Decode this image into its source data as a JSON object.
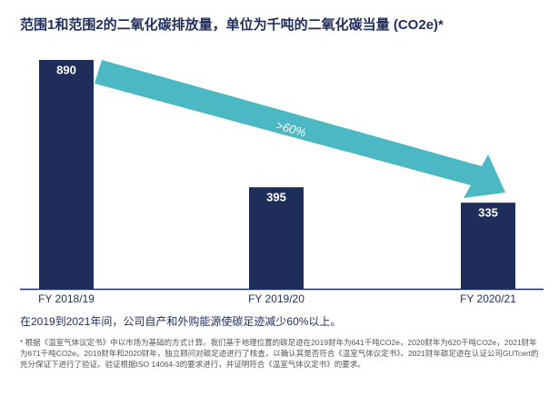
{
  "chart_data": {
    "type": "bar",
    "title": "范围1和范围2的二氧化碳排放量，单位为千吨的二氧化碳当量 (CO2e)*",
    "categories": [
      "FY 2018/19",
      "FY 2019/20",
      "FY 2020/21"
    ],
    "values": [
      890,
      395,
      335
    ],
    "color": "#1f2d5a",
    "annotation": ">60%",
    "annotation_color": "#4bb8c4",
    "caption": "在2019到2021年间，公司自产和外购能源使碳足迹减少60%以上。",
    "footnote": "* 根据《温室气体议定书》中以市场为基础的方式计算。我们基于地理位置的碳足迹在2019财年为641千吨CO2e，2020财年为620千吨CO2e，2021财年为671千吨CO2e。2019财年和2020财年，独立顾问对碳足迹进行了核查，以确认其是否符合《温室气体议定书》。2021财年碳足迹在认证公司GUTcert的充分保证下进行了验证。验证根据ISO 14064-3的要求进行，并证明符合《温室气体议定书》的要求。"
  }
}
